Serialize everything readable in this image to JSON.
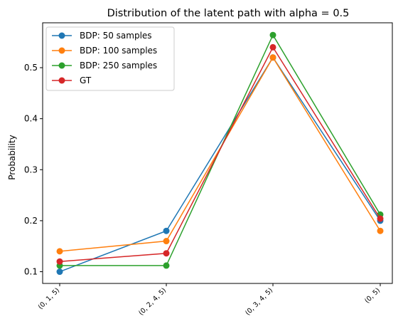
{
  "chart_data": {
    "type": "line",
    "title": "Distribution of the latent path with alpha = 0.5",
    "xlabel": "",
    "ylabel": "Probability",
    "categories": [
      "(0, 1, 5)",
      "(0, 2, 4, 5)",
      "(0, 3, 4, 5)",
      "(0, 5)"
    ],
    "ylim": [
      0.077,
      0.588
    ],
    "yticks": [
      0.1,
      0.2,
      0.3,
      0.4,
      0.5
    ],
    "ytick_labels": [
      "0.1",
      "0.2",
      "0.3",
      "0.4",
      "0.5"
    ],
    "grid": false,
    "legend_position": "top-left",
    "series": [
      {
        "name": "BDP: 50 samples",
        "color": "#1f77b4",
        "values": [
          0.1,
          0.18,
          0.52,
          0.2
        ]
      },
      {
        "name": "BDP: 100 samples",
        "color": "#ff7f0e",
        "values": [
          0.14,
          0.16,
          0.52,
          0.18
        ]
      },
      {
        "name": "BDP: 250 samples",
        "color": "#2ca02c",
        "values": [
          0.112,
          0.112,
          0.564,
          0.212
        ]
      },
      {
        "name": "GT",
        "color": "#d62728",
        "values": [
          0.12,
          0.136,
          0.54,
          0.204
        ]
      }
    ]
  }
}
